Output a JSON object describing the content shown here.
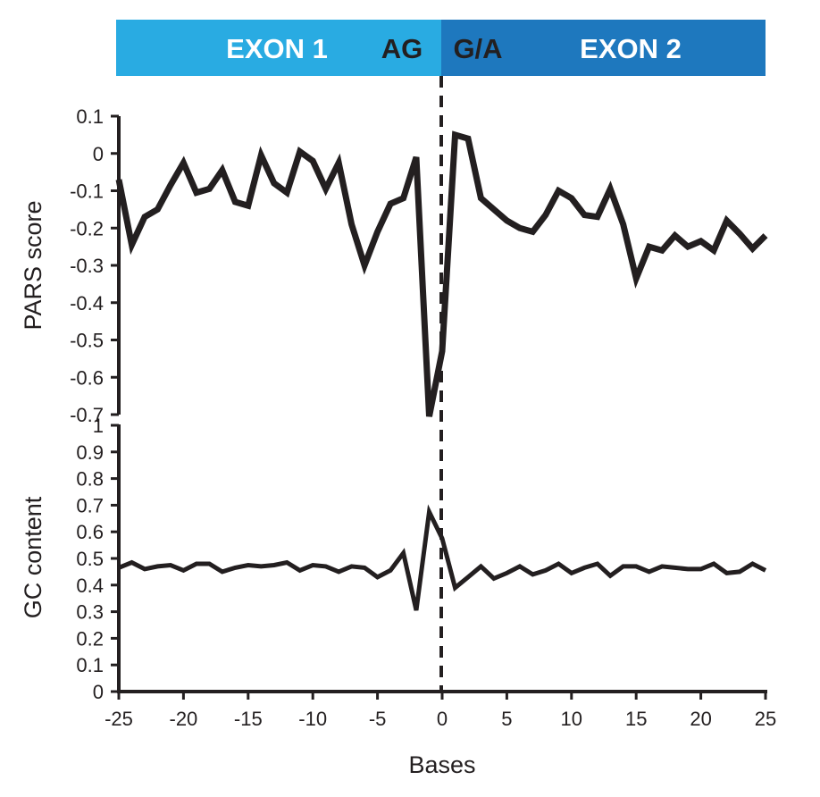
{
  "banner": {
    "exon1_label": "EXON 1",
    "exon2_label": "EXON 2",
    "acceptor_label": "AG",
    "donor_label": "G/A",
    "exon1_color": "#29abe2",
    "exon2_color": "#1e78be",
    "label_color": "#ffffff",
    "junction_text_color": "#231f20"
  },
  "chart_data": [
    {
      "type": "line",
      "ylabel": "PARS score",
      "xlabel": "",
      "ylim": [
        -0.7,
        0.1
      ],
      "yticks": [
        "0.1",
        "0",
        "-0.1",
        "-0.2",
        "-0.3",
        "-0.4",
        "-0.5",
        "-0.6",
        "-0.7"
      ],
      "xlim": [
        -25,
        25
      ],
      "line_color": "#231f20",
      "series": [
        {
          "x": [
            -25,
            -24,
            -23,
            -22,
            -21,
            -20,
            -19,
            -18,
            -17,
            -16,
            -15,
            -14,
            -13,
            -12,
            -11,
            -10,
            -9,
            -8,
            -7,
            -6,
            -5,
            -4,
            -3,
            -2,
            -1,
            0,
            1,
            2,
            3,
            4,
            5,
            6,
            7,
            8,
            9,
            10,
            11,
            12,
            13,
            14,
            15,
            16,
            17,
            18,
            19,
            20,
            21,
            22,
            23,
            24,
            25
          ],
          "values": [
            -0.07,
            -0.245,
            -0.17,
            -0.15,
            -0.085,
            -0.025,
            -0.105,
            -0.095,
            -0.045,
            -0.13,
            -0.14,
            -0.005,
            -0.08,
            -0.105,
            0.005,
            -0.02,
            -0.095,
            -0.025,
            -0.19,
            -0.3,
            -0.21,
            -0.135,
            -0.12,
            -0.01,
            -0.705,
            -0.53,
            0.05,
            0.04,
            -0.12,
            -0.15,
            -0.18,
            -0.2,
            -0.21,
            -0.165,
            -0.1,
            -0.12,
            -0.165,
            -0.17,
            -0.095,
            -0.19,
            -0.335,
            -0.25,
            -0.26,
            -0.22,
            -0.25,
            -0.235,
            -0.26,
            -0.18,
            -0.215,
            -0.255,
            -0.22
          ]
        }
      ]
    },
    {
      "type": "line",
      "ylabel": "GC content",
      "xlabel": "Bases",
      "ylim": [
        0,
        1
      ],
      "yticks": [
        "1",
        "0.9",
        "0.8",
        "0.7",
        "0.6",
        "0.5",
        "0.4",
        "0.3",
        "0.2",
        "0.1",
        "0"
      ],
      "xlim": [
        -25,
        25
      ],
      "xticks": [
        "-25",
        "-20",
        "-15",
        "-10",
        "-5",
        "0",
        "5",
        "10",
        "15",
        "20",
        "25"
      ],
      "line_color": "#231f20",
      "series": [
        {
          "x": [
            -25,
            -24,
            -23,
            -22,
            -21,
            -20,
            -19,
            -18,
            -17,
            -16,
            -15,
            -14,
            -13,
            -12,
            -11,
            -10,
            -9,
            -8,
            -7,
            -6,
            -5,
            -4,
            -3,
            -2,
            -1,
            0,
            1,
            2,
            3,
            4,
            5,
            6,
            7,
            8,
            9,
            10,
            11,
            12,
            13,
            14,
            15,
            16,
            17,
            18,
            19,
            20,
            21,
            22,
            23,
            24,
            25
          ],
          "values": [
            0.465,
            0.485,
            0.46,
            0.47,
            0.475,
            0.455,
            0.48,
            0.48,
            0.45,
            0.465,
            0.475,
            0.47,
            0.475,
            0.485,
            0.455,
            0.475,
            0.47,
            0.45,
            0.47,
            0.465,
            0.43,
            0.455,
            0.52,
            0.305,
            0.675,
            0.575,
            0.39,
            0.43,
            0.47,
            0.425,
            0.445,
            0.47,
            0.44,
            0.455,
            0.48,
            0.445,
            0.465,
            0.48,
            0.435,
            0.47,
            0.47,
            0.45,
            0.47,
            0.465,
            0.46,
            0.46,
            0.48,
            0.445,
            0.45,
            0.48,
            0.455
          ]
        }
      ]
    }
  ]
}
